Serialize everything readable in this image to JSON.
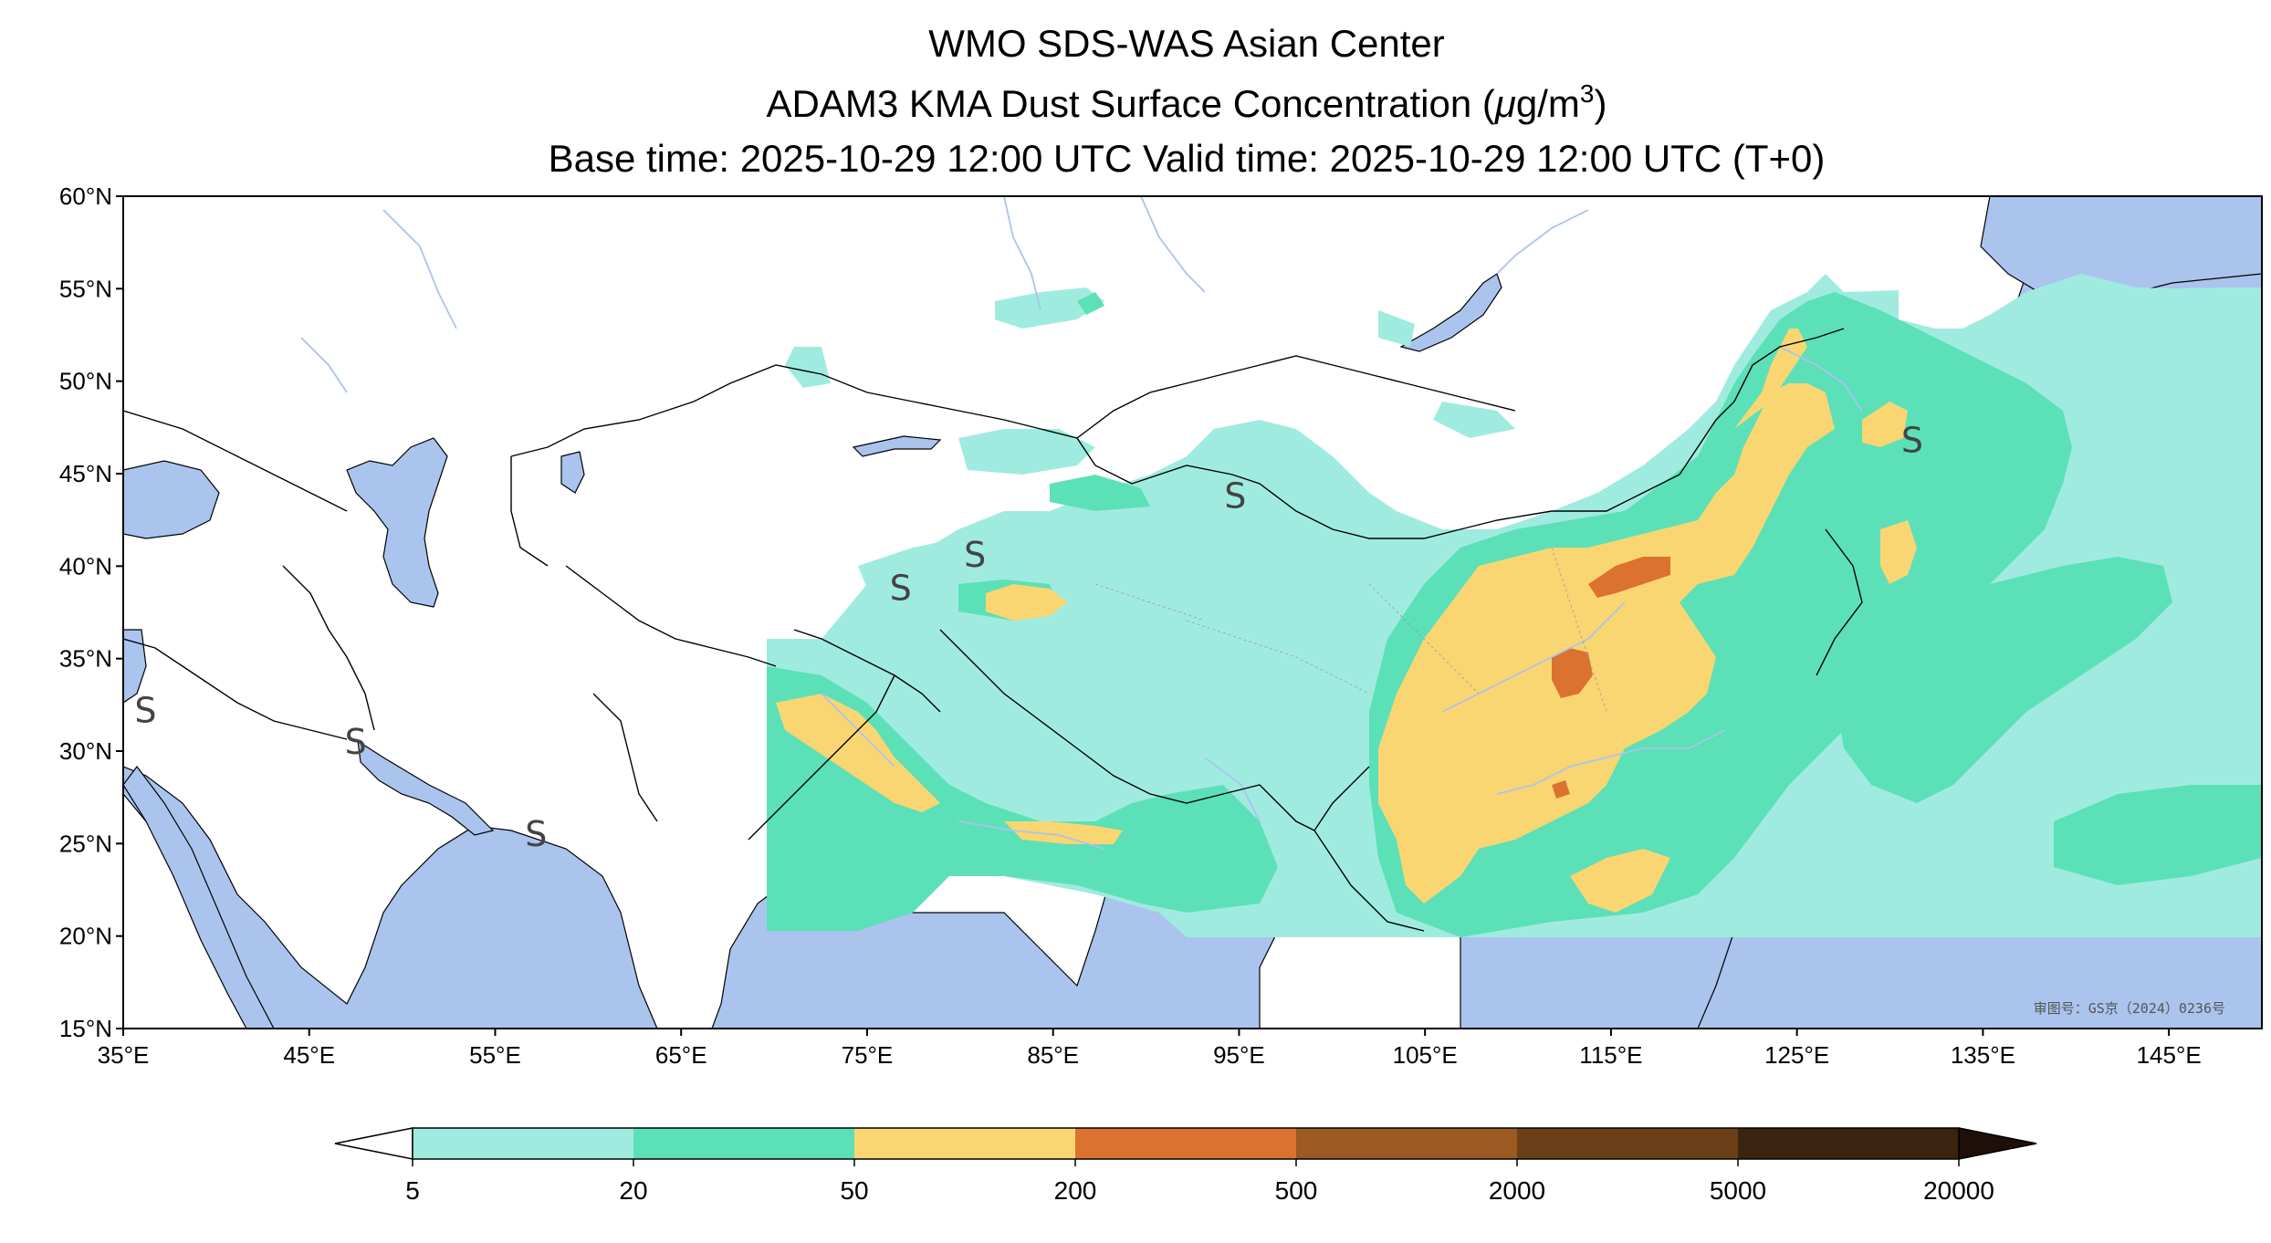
{
  "title": {
    "line1": "WMO SDS-WAS Asian Center",
    "line2_prefix": "ADAM3 KMA Dust Surface Concentration (",
    "line2_unit_mu": "μ",
    "line2_unit_g": "g/m",
    "line2_unit_exp": "3",
    "line2_suffix": ")",
    "line3": "Base time: 2025-10-29 12:00 UTC Valid time: 2025-10-29 12:00 UTC (T+0)"
  },
  "map": {
    "lon_range": [
      35,
      150
    ],
    "lat_range": [
      15,
      60
    ],
    "land_color": "#ffffff",
    "water_color": "#aac4ee",
    "border_color": "#000000",
    "river_color": "#aac4ee",
    "approval_text": "审图号：GS京（2024）0236号"
  },
  "axes": {
    "x_ticks": [
      35,
      45,
      55,
      65,
      75,
      85,
      95,
      105,
      115,
      125,
      135,
      145
    ],
    "x_tick_labels": [
      "35°E",
      "45°E",
      "55°E",
      "65°E",
      "75°E",
      "85°E",
      "95°E",
      "105°E",
      "115°E",
      "125°E",
      "135°E",
      "145°E"
    ],
    "y_ticks": [
      60,
      55,
      50,
      45,
      40,
      35,
      30,
      25,
      20,
      15
    ],
    "y_tick_labels": [
      "60°N",
      "55°N",
      "50°N",
      "45°N",
      "40°N",
      "35°N",
      "30°N",
      "25°N",
      "20°N",
      "15°N"
    ]
  },
  "colorbar": {
    "bounds": [
      "5",
      "20",
      "50",
      "200",
      "500",
      "2000",
      "5000",
      "20000"
    ],
    "colors": [
      "#a0ebe0",
      "#5ce0b8",
      "#f9d672",
      "#dc7230",
      "#9a5a22",
      "#6b4018",
      "#3a2410"
    ],
    "under_color": "#ffffff",
    "over_color": "#1e1008",
    "extend": "both"
  },
  "storm_markers": [
    {
      "lon": 36.2,
      "lat": 32.2
    },
    {
      "lon": 47.5,
      "lat": 30.5
    },
    {
      "lon": 57.2,
      "lat": 25.5
    },
    {
      "lon": 76.8,
      "lat": 38.8
    },
    {
      "lon": 80.8,
      "lat": 40.6
    },
    {
      "lon": 94.8,
      "lat": 43.8
    },
    {
      "lon": 131.2,
      "lat": 46.8
    }
  ]
}
